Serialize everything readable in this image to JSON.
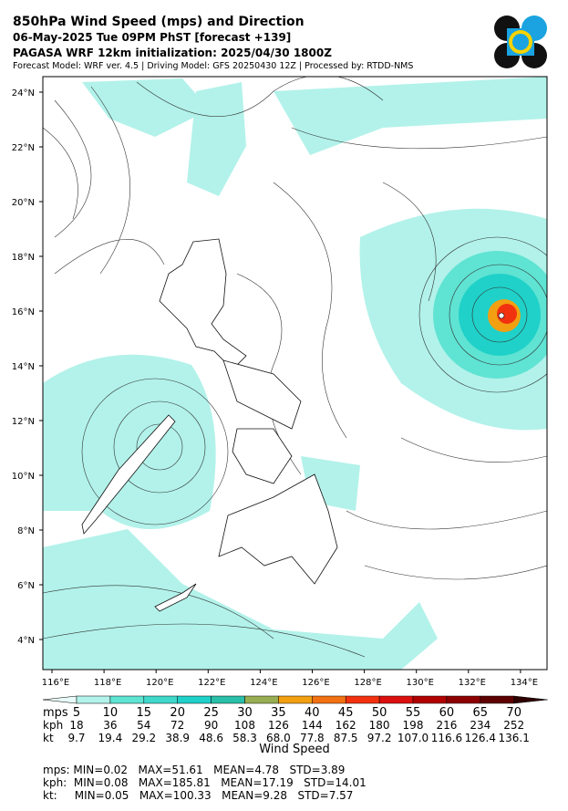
{
  "header": {
    "title": "850hPa Wind Speed (mps) and Direction",
    "valid": "06-May-2025 Tue 09PM PhST [forecast +139]",
    "init": "PAGASA WRF 12km initialization: 2025/04/30 1800Z",
    "credits": "Forecast Model: WRF ver. 4.5 | Driving Model: GFS 20250430 12Z | Processed by: RTDD-NMS"
  },
  "map": {
    "lat_labels": [
      "24°N",
      "22°N",
      "20°N",
      "18°N",
      "16°N",
      "14°N",
      "12°N",
      "10°N",
      "8°N",
      "6°N",
      "4°N"
    ],
    "lon_labels": [
      "116°E",
      "118°E",
      "120°E",
      "122°E",
      "124°E",
      "126°E",
      "128°E",
      "130°E",
      "132°E",
      "134°E"
    ]
  },
  "colorbar": {
    "colors": [
      "#e8fbf8",
      "#b2f2ea",
      "#5fe3d3",
      "#3fd9cb",
      "#1fd1c9",
      "#2abfa8",
      "#98ae52",
      "#f2a012",
      "#f27112",
      "#f2320f",
      "#dc0f0f",
      "#b00000",
      "#8c0000",
      "#5e0000",
      "#2e0000"
    ],
    "rows": [
      {
        "unit": "mps",
        "values": [
          "5",
          "10",
          "15",
          "20",
          "25",
          "30",
          "35",
          "40",
          "45",
          "50",
          "55",
          "60",
          "65",
          "70"
        ]
      },
      {
        "unit": "kph",
        "values": [
          "18",
          "36",
          "54",
          "72",
          "90",
          "108",
          "126",
          "144",
          "162",
          "180",
          "198",
          "216",
          "234",
          "252"
        ]
      },
      {
        "unit": "kt",
        "values": [
          "9.7",
          "19.4",
          "29.2",
          "38.9",
          "48.6",
          "58.3",
          "68.0",
          "77.8",
          "87.5",
          "97.2",
          "107.0",
          "116.6",
          "126.4",
          "136.1"
        ]
      }
    ],
    "label": "Wind Speed"
  },
  "stats": [
    "mps: MIN=0.02   MAX=51.61   MEAN=4.78   STD=3.89",
    "kph:  MIN=0.08   MAX=185.81   MEAN=17.19   STD=14.01",
    "kt:     MIN=0.05   MAX=100.33   MEAN=9.28   STD=7.57"
  ]
}
